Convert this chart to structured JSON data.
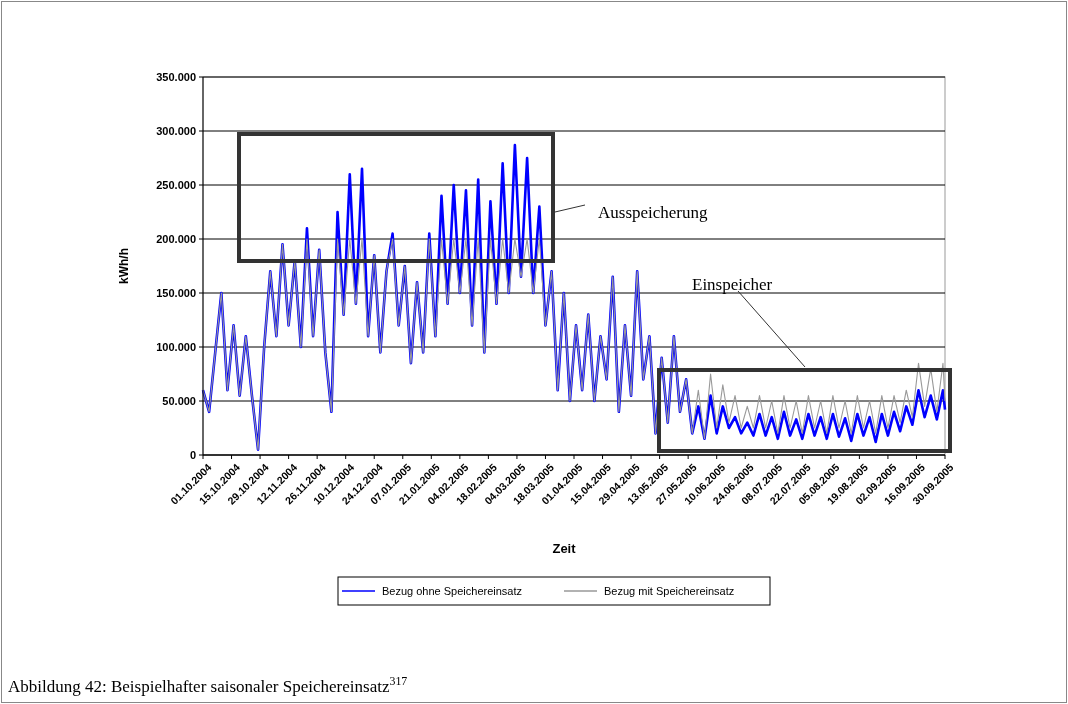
{
  "chart_data": {
    "type": "line",
    "xlabel": "Zeit",
    "ylabel": "kWh/h",
    "annotations": [
      "Ausspeicherung",
      "Einspeicher",
      "Abbildung 42: Beispielhafter saisonaler Speichereinsatz$^{317}$"
    ],
    "x": [
      "2004-10-01",
      "2004-10-04",
      "2004-10-07",
      "2004-10-10",
      "2004-10-13",
      "2004-10-16",
      "2004-10-19",
      "2004-10-22",
      "2004-10-25",
      "2004-10-28",
      "2004-10-31",
      "2004-11-03",
      "2004-11-06",
      "2004-11-09",
      "2004-11-12",
      "2004-11-15",
      "2004-11-18",
      "2004-11-21",
      "2004-11-24",
      "2004-11-27",
      "2004-11-30",
      "2004-12-03",
      "2004-12-06",
      "2004-12-09",
      "2004-12-12",
      "2004-12-15",
      "2004-12-18",
      "2004-12-21",
      "2004-12-24",
      "2004-12-27",
      "2004-12-30",
      "2005-01-02",
      "2005-01-05",
      "2005-01-08",
      "2005-01-11",
      "2005-01-14",
      "2005-01-17",
      "2005-01-20",
      "2005-01-23",
      "2005-01-26",
      "2005-01-29",
      "2005-02-01",
      "2005-02-04",
      "2005-02-07",
      "2005-02-10",
      "2005-02-13",
      "2005-02-16",
      "2005-02-19",
      "2005-02-22",
      "2005-02-25",
      "2005-02-28",
      "2005-03-03",
      "2005-03-06",
      "2005-03-09",
      "2005-03-12",
      "2005-03-15",
      "2005-03-18",
      "2005-03-21",
      "2005-03-24",
      "2005-03-27",
      "2005-03-30",
      "2005-04-02",
      "2005-04-05",
      "2005-04-08",
      "2005-04-11",
      "2005-04-14",
      "2005-04-17",
      "2005-04-20",
      "2005-04-23",
      "2005-04-26",
      "2005-04-29",
      "2005-05-02",
      "2005-05-05",
      "2005-05-08",
      "2005-05-11",
      "2005-05-14",
      "2005-05-17",
      "2005-05-20",
      "2005-05-23",
      "2005-05-26",
      "2005-05-29",
      "2005-06-01",
      "2005-06-04",
      "2005-06-07",
      "2005-06-10",
      "2005-06-13",
      "2005-06-16",
      "2005-06-19",
      "2005-06-22",
      "2005-06-25",
      "2005-06-28",
      "2005-07-01",
      "2005-07-04",
      "2005-07-07",
      "2005-07-10",
      "2005-07-13",
      "2005-07-16",
      "2005-07-19",
      "2005-07-22",
      "2005-07-25",
      "2005-07-28",
      "2005-07-31",
      "2005-08-03",
      "2005-08-06",
      "2005-08-09",
      "2005-08-12",
      "2005-08-15",
      "2005-08-18",
      "2005-08-21",
      "2005-08-24",
      "2005-08-27",
      "2005-08-30",
      "2005-09-02",
      "2005-09-05",
      "2005-09-08",
      "2005-09-11",
      "2005-09-14",
      "2005-09-17",
      "2005-09-20",
      "2005-09-23",
      "2005-09-26",
      "2005-09-29",
      "2005-09-30"
    ],
    "series": [
      {
        "name": "Bezug ohne Speichereinsatz",
        "color": "#0000ff",
        "values": [
          60000,
          40000,
          95000,
          150000,
          60000,
          120000,
          55000,
          110000,
          55000,
          5000,
          100000,
          170000,
          110000,
          195000,
          120000,
          180000,
          100000,
          210000,
          110000,
          190000,
          95000,
          40000,
          225000,
          130000,
          260000,
          140000,
          265000,
          110000,
          185000,
          95000,
          170000,
          205000,
          120000,
          175000,
          85000,
          160000,
          95000,
          205000,
          110000,
          240000,
          140000,
          250000,
          150000,
          245000,
          120000,
          255000,
          95000,
          235000,
          140000,
          270000,
          150000,
          287000,
          165000,
          275000,
          150000,
          230000,
          120000,
          170000,
          60000,
          150000,
          50000,
          120000,
          60000,
          130000,
          50000,
          110000,
          70000,
          165000,
          40000,
          120000,
          55000,
          170000,
          70000,
          110000,
          20000,
          90000,
          30000,
          110000,
          40000,
          70000,
          20000,
          45000,
          15000,
          55000,
          20000,
          45000,
          25000,
          35000,
          20000,
          30000,
          18000,
          38000,
          18000,
          35000,
          15000,
          40000,
          18000,
          33000,
          15000,
          38000,
          18000,
          35000,
          15000,
          38000,
          17000,
          34000,
          13000,
          38000,
          18000,
          35000,
          12000,
          38000,
          18000,
          40000,
          22000,
          45000,
          28000,
          60000,
          35000,
          55000,
          33000,
          60000,
          42000
        ]
      },
      {
        "name": "Bezug mit Speichereinsatz",
        "color": "#999999",
        "values": [
          60000,
          40000,
          95000,
          150000,
          60000,
          120000,
          55000,
          110000,
          55000,
          5000,
          100000,
          170000,
          110000,
          195000,
          120000,
          180000,
          100000,
          200000,
          110000,
          190000,
          95000,
          40000,
          200000,
          130000,
          200000,
          140000,
          200000,
          110000,
          185000,
          95000,
          170000,
          200000,
          120000,
          175000,
          85000,
          160000,
          95000,
          200000,
          110000,
          200000,
          140000,
          200000,
          150000,
          200000,
          120000,
          200000,
          95000,
          200000,
          140000,
          200000,
          150000,
          200000,
          165000,
          200000,
          150000,
          200000,
          120000,
          170000,
          60000,
          150000,
          50000,
          120000,
          60000,
          130000,
          50000,
          110000,
          70000,
          165000,
          40000,
          120000,
          55000,
          170000,
          70000,
          110000,
          20000,
          90000,
          30000,
          110000,
          40000,
          70000,
          20000,
          60000,
          15000,
          75000,
          25000,
          65000,
          30000,
          55000,
          25000,
          45000,
          25000,
          55000,
          25000,
          50000,
          20000,
          55000,
          25000,
          50000,
          20000,
          55000,
          25000,
          50000,
          20000,
          55000,
          25000,
          50000,
          20000,
          55000,
          25000,
          50000,
          20000,
          55000,
          25000,
          55000,
          30000,
          60000,
          35000,
          85000,
          45000,
          80000,
          40000,
          85000,
          50000
        ]
      }
    ],
    "xlim": [
      "2004-10-01",
      "2005-09-30"
    ],
    "xticks": [
      {
        "value": "2004-10-01",
        "label": "01.10.2004"
      },
      {
        "value": "2004-10-15",
        "label": "15.10.2004"
      },
      {
        "value": "2004-10-29",
        "label": "29.10.2004"
      },
      {
        "value": "2004-11-12",
        "label": "12.11.2004"
      },
      {
        "value": "2004-11-26",
        "label": "26.11.2004"
      },
      {
        "value": "2004-12-10",
        "label": "10.12.2004"
      },
      {
        "value": "2004-12-24",
        "label": "24.12.2004"
      },
      {
        "value": "2005-01-07",
        "label": "07.01.2005"
      },
      {
        "value": "2005-01-21",
        "label": "21.01.2005"
      },
      {
        "value": "2005-02-04",
        "label": "04.02.2005"
      },
      {
        "value": "2005-02-18",
        "label": "18.02.2005"
      },
      {
        "value": "2005-03-04",
        "label": "04.03.2005"
      },
      {
        "value": "2005-03-18",
        "label": "18.03.2005"
      },
      {
        "value": "2005-04-01",
        "label": "01.04.2005"
      },
      {
        "value": "2005-04-15",
        "label": "15.04.2005"
      },
      {
        "value": "2005-04-29",
        "label": "29.04.2005"
      },
      {
        "value": "2005-05-13",
        "label": "13.05.2005"
      },
      {
        "value": "2005-05-27",
        "label": "27.05.2005"
      },
      {
        "value": "2005-06-10",
        "label": "10.06.2005"
      },
      {
        "value": "2005-06-24",
        "label": "24.06.2005"
      },
      {
        "value": "2005-07-08",
        "label": "08.07.2005"
      },
      {
        "value": "2005-07-22",
        "label": "22.07.2005"
      },
      {
        "value": "2005-08-05",
        "label": "05.08.2005"
      },
      {
        "value": "2005-08-19",
        "label": "19.08.2005"
      },
      {
        "value": "2005-09-02",
        "label": "02.09.2005"
      },
      {
        "value": "2005-09-16",
        "label": "16.09.2005"
      },
      {
        "value": "2005-09-30",
        "label": "30.09.2005"
      }
    ],
    "ylim": [
      0,
      350000
    ],
    "yticks": [
      0,
      {
        "value": 50000,
        "label": "50.000"
      },
      {
        "value": 100000,
        "label": "100.000"
      },
      {
        "value": 150000,
        "label": "150.000"
      },
      {
        "value": 200000,
        "label": "200.000"
      },
      {
        "value": 250000,
        "label": "250.000"
      },
      {
        "value": 300000,
        "label": "300.000"
      },
      {
        "value": 350000,
        "label": "350.000"
      }
    ],
    "grid": "y",
    "legend": "bottom",
    "marker": "none",
    "line_style": "solid"
  }
}
